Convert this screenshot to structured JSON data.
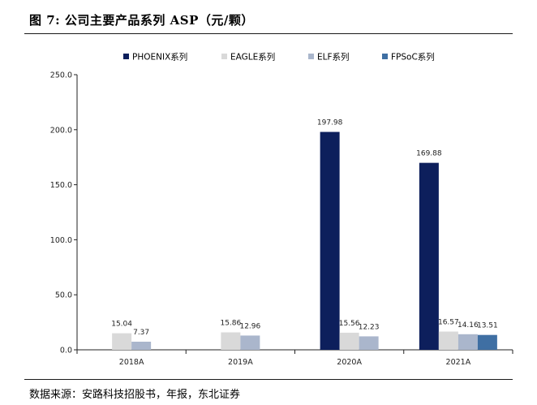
{
  "figure": {
    "title": "图 7: 公司主要产品系列 ASP（元/颗）",
    "source": "数据来源：安路科技招股书，年报，东北证券"
  },
  "chart_data": {
    "type": "bar",
    "categories": [
      "2018A",
      "2019A",
      "2020A",
      "2021A"
    ],
    "series": [
      {
        "name": "PHOENIX系列",
        "color": "#0d1f5c",
        "values": [
          null,
          null,
          197.98,
          169.88
        ],
        "labels": [
          "",
          "",
          "197.98",
          "169.88"
        ]
      },
      {
        "name": "EAGLE系列",
        "color": "#d9d9d9",
        "values": [
          15.04,
          15.86,
          15.56,
          16.57
        ],
        "labels": [
          "15.04",
          "15.86",
          "15.56",
          "16.57"
        ]
      },
      {
        "name": "ELF系列",
        "color": "#aab6cc",
        "values": [
          7.37,
          12.96,
          12.23,
          14.16
        ],
        "labels": [
          "7.37",
          "12.96",
          "12.23",
          "14.16"
        ]
      },
      {
        "name": "FPSoC系列",
        "color": "#3f6fa3",
        "values": [
          null,
          null,
          null,
          13.51
        ],
        "labels": [
          "",
          "",
          "",
          "13.51"
        ]
      }
    ],
    "ylim": [
      0,
      250
    ],
    "yticks": [
      0,
      50,
      100,
      150,
      200,
      250
    ],
    "ytick_labels": [
      "0.0",
      "50.0",
      "100.0",
      "150.0",
      "200.0",
      "250.0"
    ],
    "xlabel": "",
    "ylabel": "",
    "grid": false,
    "legend": "top"
  }
}
